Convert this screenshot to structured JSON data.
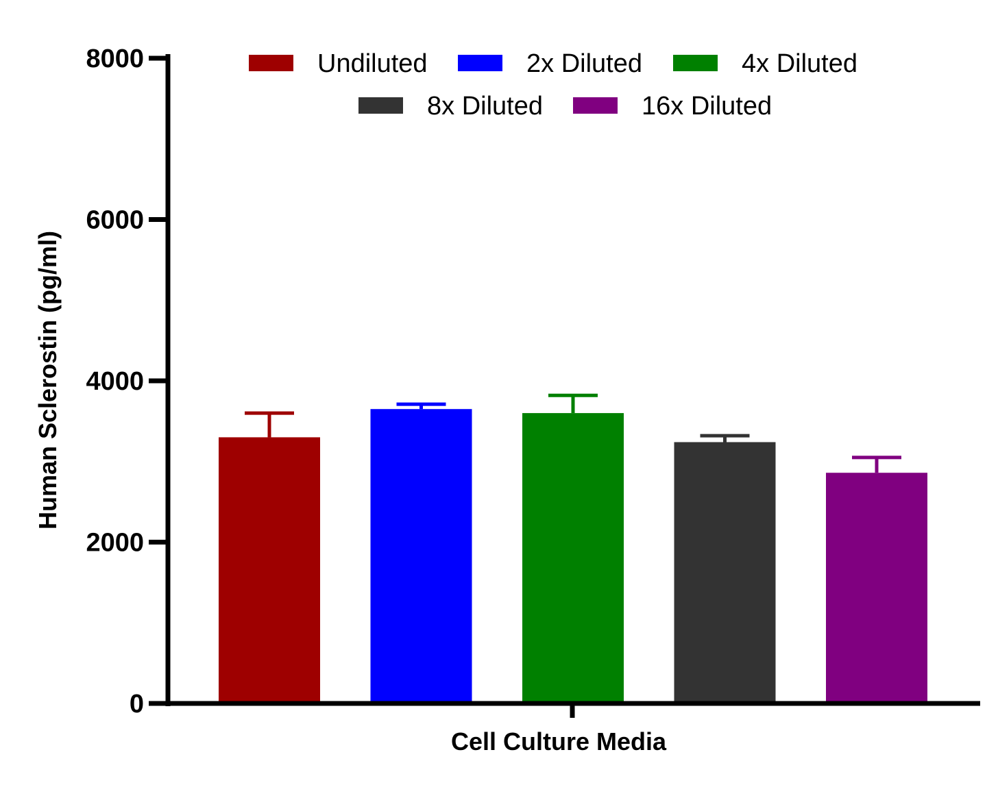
{
  "chart_data": {
    "type": "bar",
    "title": "",
    "xlabel": "Cell Culture Media",
    "ylabel": "Human Sclerostin (pg/ml)",
    "ylim": [
      0,
      8000
    ],
    "yticks": [
      "0",
      "2000",
      "4000",
      "6000",
      "8000"
    ],
    "grid": false,
    "legend_position": "top",
    "series": [
      {
        "name": "Undiluted",
        "value": 3300,
        "error": 300,
        "color": "#9e0000"
      },
      {
        "name": "2x Diluted",
        "value": 3650,
        "error": 60,
        "color": "#0000ff"
      },
      {
        "name": "4x Diluted",
        "value": 3600,
        "error": 220,
        "color": "#008000"
      },
      {
        "name": "8x Diluted",
        "value": 3240,
        "error": 80,
        "color": "#333333"
      },
      {
        "name": "16x Diluted",
        "value": 2860,
        "error": 190,
        "color": "#800080"
      }
    ]
  }
}
